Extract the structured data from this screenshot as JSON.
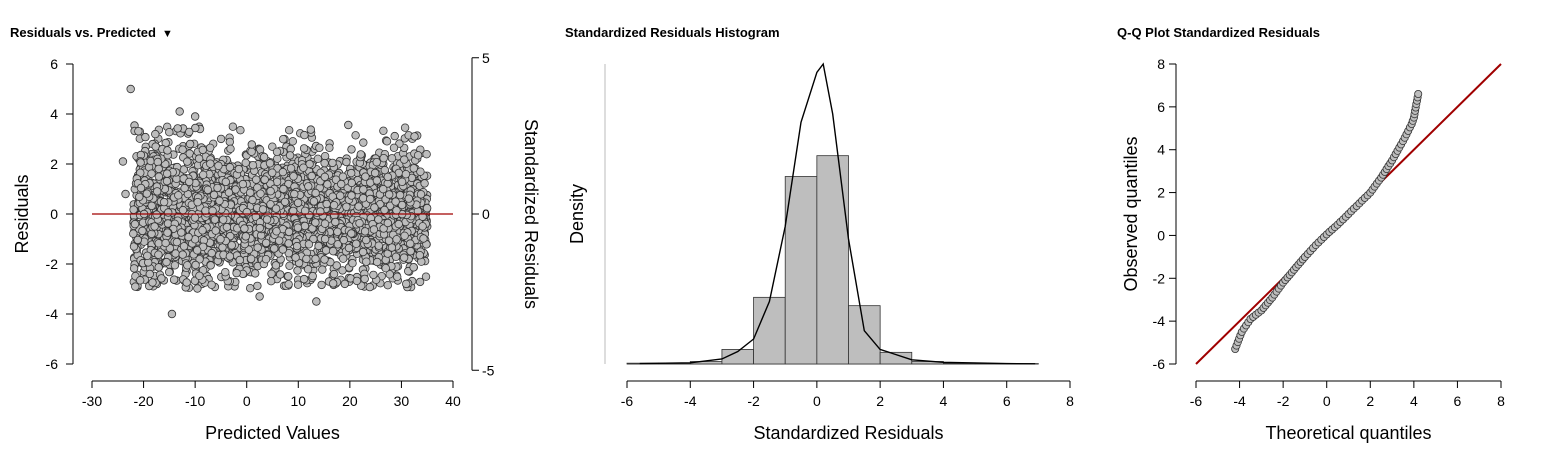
{
  "panels": [
    {
      "title": "Residuals vs. Predicted",
      "has_menu": true
    },
    {
      "title": "Standardized Residuals Histogram",
      "has_menu": false
    },
    {
      "title": "Q-Q Plot Standardized Residuals",
      "has_menu": false
    }
  ],
  "colors": {
    "point_fill": "#bdbdbd",
    "point_stroke": "#333333",
    "ref_line": "#a00000",
    "bar_fill": "#bebebe"
  },
  "chart_data": [
    {
      "type": "scatter",
      "title": "Residuals vs. Predicted",
      "xlabel": "Predicted Values",
      "ylabel": "Residuals",
      "y2label": "Standardized Residuals",
      "xlim": [
        -30,
        40
      ],
      "ylim": [
        -6,
        6
      ],
      "xticks": [
        "-30",
        "-20",
        "-10",
        "0",
        "10",
        "20",
        "30",
        "40"
      ],
      "yticks": [
        "-6",
        "-4",
        "-2",
        "0",
        "2",
        "4",
        "6"
      ],
      "y2ticks": [
        "-5",
        "0",
        "5"
      ],
      "y2_scale": 0.8,
      "point_x_range": [
        -22,
        35
      ],
      "point_y_spread": 1.2,
      "outliers": [
        {
          "x": -22.5,
          "y": 5.0
        },
        {
          "x": -24,
          "y": 2.1
        },
        {
          "x": -14.5,
          "y": -4.0
        },
        {
          "x": -13,
          "y": 4.1
        },
        {
          "x": 13.5,
          "y": -3.5
        },
        {
          "x": 2.5,
          "y": -3.3
        },
        {
          "x": -10,
          "y": 3.9
        },
        {
          "x": -23.5,
          "y": 0.8
        }
      ],
      "reference_y": 0
    },
    {
      "type": "bar",
      "title": "Standardized Residuals Histogram",
      "xlabel": "Standardized Residuals",
      "ylabel": "Density",
      "xlim": [
        -6,
        8
      ],
      "xticks": [
        "-6",
        "-4",
        "-2",
        "0",
        "2",
        "4",
        "6",
        "8"
      ],
      "bins": [
        {
          "from": -6,
          "to": -5,
          "density": 0.002
        },
        {
          "from": -5,
          "to": -4,
          "density": 0.002
        },
        {
          "from": -4,
          "to": -3,
          "density": 0.006
        },
        {
          "from": -3,
          "to": -2,
          "density": 0.035
        },
        {
          "from": -2,
          "to": -1,
          "density": 0.16
        },
        {
          "from": -1,
          "to": 0,
          "density": 0.45
        },
        {
          "from": 0,
          "to": 1,
          "density": 0.5
        },
        {
          "from": 1,
          "to": 2,
          "density": 0.14
        },
        {
          "from": 2,
          "to": 3,
          "density": 0.028
        },
        {
          "from": 3,
          "to": 4,
          "density": 0.006
        },
        {
          "from": 4,
          "to": 5,
          "density": 0.002
        },
        {
          "from": 5,
          "to": 6,
          "density": 0.001
        },
        {
          "from": 6,
          "to": 7,
          "density": 0.001
        }
      ],
      "density_curve": [
        [
          -5.6,
          0.001
        ],
        [
          -4,
          0.003
        ],
        [
          -3,
          0.012
        ],
        [
          -2.5,
          0.03
        ],
        [
          -2,
          0.06
        ],
        [
          -1.5,
          0.15
        ],
        [
          -1,
          0.33
        ],
        [
          -0.5,
          0.58
        ],
        [
          0,
          0.7
        ],
        [
          0.2,
          0.72
        ],
        [
          0.5,
          0.6
        ],
        [
          1,
          0.3
        ],
        [
          1.5,
          0.08
        ],
        [
          2,
          0.035
        ],
        [
          3,
          0.01
        ],
        [
          4,
          0.004
        ],
        [
          6,
          0.001
        ],
        [
          6.9,
          0.0005
        ]
      ],
      "ymax": 0.72
    },
    {
      "type": "scatter",
      "title": "Q-Q Plot Standardized Residuals",
      "xlabel": "Theoretical quantiles",
      "ylabel": "Observed quantiles",
      "xlim": [
        -6,
        8
      ],
      "ylim": [
        -6,
        8
      ],
      "xticks": [
        "-6",
        "-4",
        "-2",
        "0",
        "2",
        "4",
        "6",
        "8"
      ],
      "yticks": [
        "-6",
        "-4",
        "-2",
        "0",
        "2",
        "4",
        "6",
        "8"
      ],
      "reference_line": [
        [
          -6,
          -6
        ],
        [
          8,
          8
        ]
      ],
      "qq_shape": [
        [
          -4.2,
          -5.3
        ],
        [
          -3.9,
          -4.5
        ],
        [
          -3.5,
          -3.9
        ],
        [
          -3,
          -3.5
        ],
        [
          -2.5,
          -2.9
        ],
        [
          -2,
          -2.2
        ],
        [
          -1.5,
          -1.6
        ],
        [
          -1,
          -1.0
        ],
        [
          -0.5,
          -0.45
        ],
        [
          0,
          0.05
        ],
        [
          0.5,
          0.5
        ],
        [
          1,
          1.0
        ],
        [
          1.5,
          1.5
        ],
        [
          2,
          2.0
        ],
        [
          2.5,
          2.7
        ],
        [
          3,
          3.5
        ],
        [
          3.5,
          4.4
        ],
        [
          3.9,
          5.2
        ],
        [
          4.0,
          5.5
        ],
        [
          4.2,
          6.6
        ]
      ]
    }
  ]
}
